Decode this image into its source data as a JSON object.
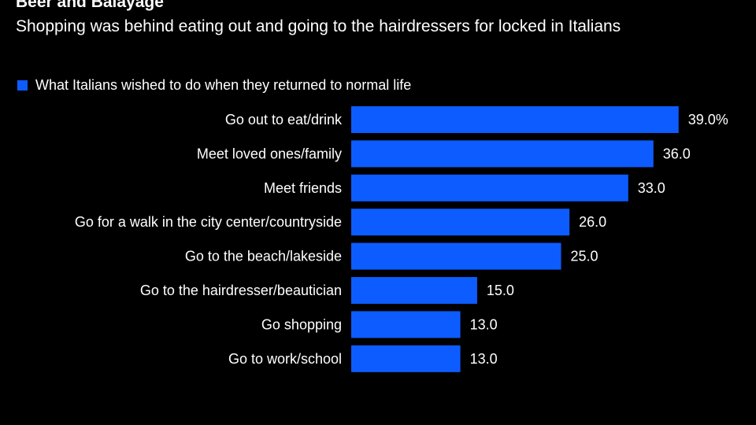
{
  "title": "Beer and Balayage",
  "subtitle": "Shopping was behind eating out and going to the hairdressers for locked in Italians",
  "colors": {
    "background": "#000000",
    "bar": "#0d5cff",
    "text": "#ffffff"
  },
  "chart_data": {
    "type": "bar",
    "orientation": "horizontal",
    "legend_position": "top-left",
    "grid": false,
    "xlim": [
      0,
      40
    ],
    "categories": [
      "Go out to eat/drink",
      "Meet loved ones/family",
      "Meet friends",
      "Go for a walk in the city center/countryside",
      "Go to the beach/lakeside",
      "Go to the hairdresser/beautician",
      "Go shopping",
      "Go to work/school"
    ],
    "series": [
      {
        "name": "What Italians wished to do when they returned to normal life",
        "values": [
          39.0,
          36.0,
          33.0,
          26.0,
          25.0,
          15.0,
          13.0,
          13.0
        ],
        "value_labels": [
          "39.0%",
          "36.0",
          "33.0",
          "26.0",
          "25.0",
          "15.0",
          "13.0",
          "13.0"
        ]
      }
    ]
  }
}
